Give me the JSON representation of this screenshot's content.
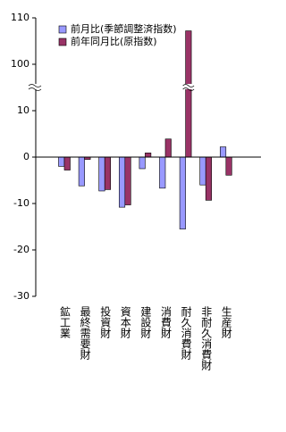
{
  "chart_data": {
    "type": "bar",
    "categories": [
      "鉱工業",
      "最終需要財",
      "投資財",
      "資本財",
      "建設財",
      "消費財",
      "耐久消費財",
      "非耐久消費財",
      "生産財"
    ],
    "series": [
      {
        "name": "前月比(季節調整済指数)",
        "color": "#9999ff",
        "values": [
          -2.0,
          -6.2,
          -7.3,
          -10.8,
          -2.5,
          -6.7,
          -15.5,
          -6.0,
          2.2
        ]
      },
      {
        "name": "前年同月比(原指数)",
        "color": "#993366",
        "values": [
          -2.8,
          -0.5,
          -7.0,
          -10.3,
          0.9,
          3.9,
          107.2,
          -9.3,
          -3.9
        ]
      }
    ],
    "ylim": [
      -30,
      110
    ],
    "yticks": [
      -30,
      -20,
      -10,
      0,
      10,
      100,
      110
    ],
    "y_break": [
      15,
      95
    ],
    "legend": "top-left"
  }
}
